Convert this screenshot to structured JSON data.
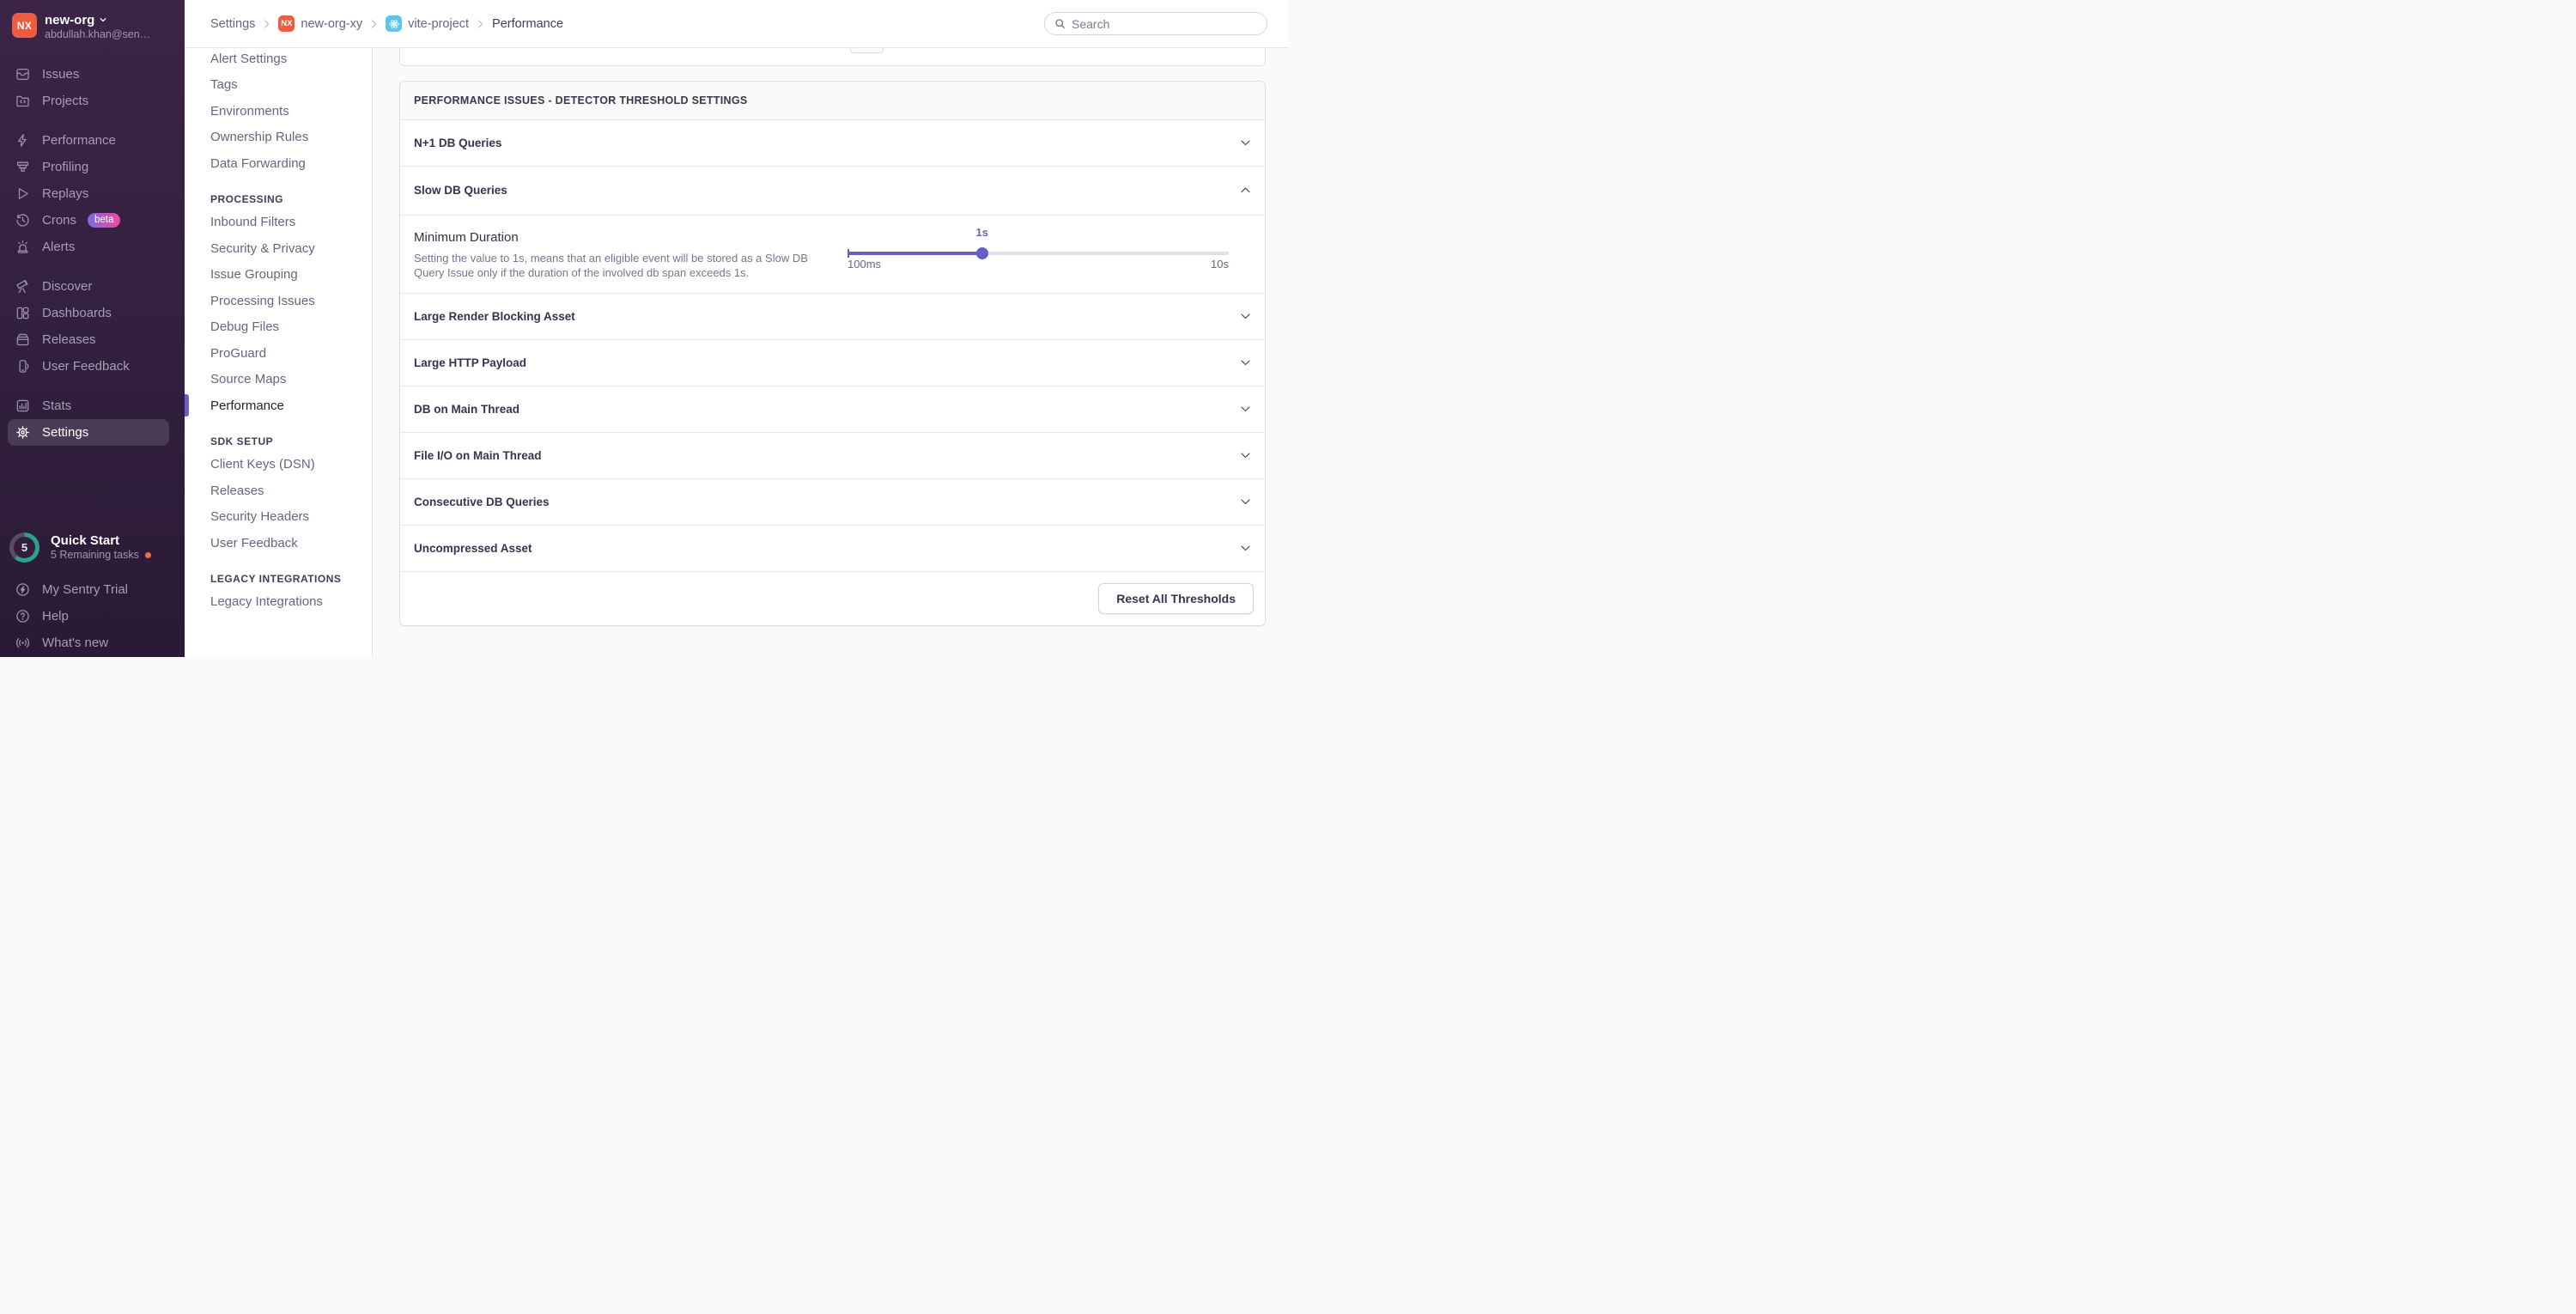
{
  "sidebar": {
    "org": {
      "avatar_initials": "NX",
      "name": "new-org",
      "email": "abdullah.khan@sen…"
    },
    "groups": [
      {
        "items": [
          {
            "icon": "issues-icon",
            "label": "Issues"
          },
          {
            "icon": "projects-icon",
            "label": "Projects"
          }
        ]
      },
      {
        "items": [
          {
            "icon": "performance-icon",
            "label": "Performance"
          },
          {
            "icon": "profiling-icon",
            "label": "Profiling"
          },
          {
            "icon": "replays-icon",
            "label": "Replays"
          },
          {
            "icon": "crons-icon",
            "label": "Crons",
            "badge": "beta"
          },
          {
            "icon": "alerts-icon",
            "label": "Alerts"
          }
        ]
      },
      {
        "items": [
          {
            "icon": "discover-icon",
            "label": "Discover"
          },
          {
            "icon": "dashboards-icon",
            "label": "Dashboards"
          },
          {
            "icon": "releases-icon",
            "label": "Releases"
          },
          {
            "icon": "user-feedback-icon",
            "label": "User Feedback"
          }
        ]
      },
      {
        "items": [
          {
            "icon": "stats-icon",
            "label": "Stats"
          },
          {
            "icon": "settings-icon",
            "label": "Settings",
            "active": true
          }
        ]
      }
    ],
    "quick_start": {
      "count": "5",
      "title": "Quick Start",
      "subtitle": "5 Remaining tasks"
    },
    "footer_items": [
      {
        "icon": "trial-icon",
        "label": "My Sentry Trial"
      },
      {
        "icon": "help-icon",
        "label": "Help"
      },
      {
        "icon": "whats-new-icon",
        "label": "What's new"
      }
    ]
  },
  "header": {
    "breadcrumbs": [
      {
        "label": "Settings"
      },
      {
        "label": "new-org-xy",
        "chip": "NX"
      },
      {
        "label": "vite-project",
        "chip": "react"
      },
      {
        "label": "Performance",
        "current": true
      }
    ],
    "search_placeholder": "Search"
  },
  "settings_nav": {
    "sections": [
      {
        "items": [
          "Alert Settings",
          "Tags",
          "Environments",
          "Ownership Rules",
          "Data Forwarding"
        ]
      },
      {
        "heading": "PROCESSING",
        "items": [
          "Inbound Filters",
          "Security & Privacy",
          "Issue Grouping",
          "Processing Issues",
          "Debug Files",
          "ProGuard",
          "Source Maps",
          "Performance"
        ],
        "active_item": "Performance"
      },
      {
        "heading": "SDK SETUP",
        "items": [
          "Client Keys (DSN)",
          "Releases",
          "Security Headers",
          "User Feedback"
        ]
      },
      {
        "heading": "LEGACY INTEGRATIONS",
        "items": [
          "Legacy Integrations"
        ]
      }
    ]
  },
  "main": {
    "panel_title": "PERFORMANCE ISSUES - DETECTOR THRESHOLD SETTINGS",
    "detectors": [
      {
        "label": "N+1 DB Queries",
        "expanded": false
      },
      {
        "label": "Slow DB Queries",
        "expanded": true,
        "setting": {
          "name": "Minimum Duration",
          "description": "Setting the value to 1s, means that an eligible event will be stored as a Slow DB Query Issue only if the duration of the involved db span exceeds 1s.",
          "slider": {
            "value_label": "1s",
            "min_label": "100ms",
            "max_label": "10s",
            "percent": 35.3
          }
        }
      },
      {
        "label": "Large Render Blocking Asset",
        "expanded": false
      },
      {
        "label": "Large HTTP Payload",
        "expanded": false
      },
      {
        "label": "DB on Main Thread",
        "expanded": false
      },
      {
        "label": "File I/O on Main Thread",
        "expanded": false
      },
      {
        "label": "Consecutive DB Queries",
        "expanded": false
      },
      {
        "label": "Uncompressed Asset",
        "expanded": false
      }
    ],
    "reset_button": "Reset All Thresholds"
  },
  "colors": {
    "accent": "#6C5FC7",
    "org_avatar": "#ED5C40",
    "react_chip": "#58C6EF",
    "badge_gradient_start": "#7C6BDF",
    "badge_gradient_end": "#EE4AA0",
    "quickstart_ring": "#2BA185",
    "alert_dot": "#EE6C4B"
  }
}
